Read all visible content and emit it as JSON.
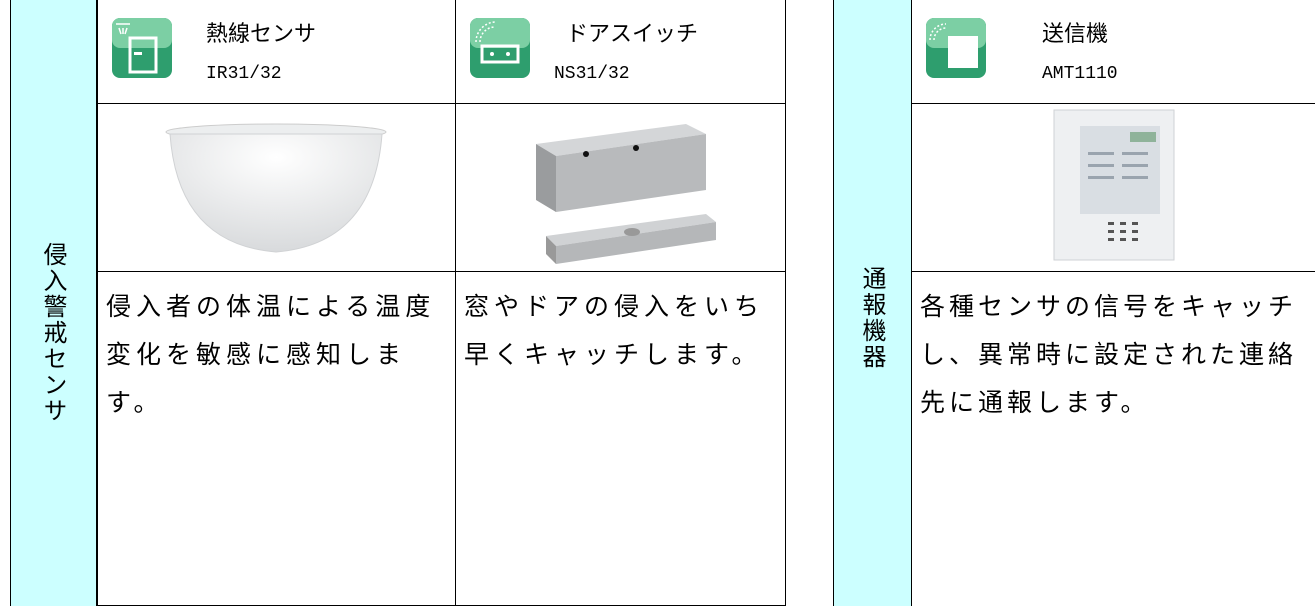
{
  "sensor_table": {
    "category": "侵入警戒センサ",
    "items": [
      {
        "name": "熱線センサ",
        "model": "IR31/32",
        "description": "侵入者の体温による温度変化を敏感に感知します。"
      },
      {
        "name": "ドアスイッチ",
        "model": "NS31/32",
        "description": "窓やドアの侵入をいち早くキャッチします。"
      }
    ]
  },
  "transmitter_table": {
    "category": "通報機器",
    "items": [
      {
        "name": "送信機",
        "model": "AMT1110",
        "description": "各種センサの信号をキャッチし、異常時に設定された連絡先に通報します。"
      }
    ]
  }
}
